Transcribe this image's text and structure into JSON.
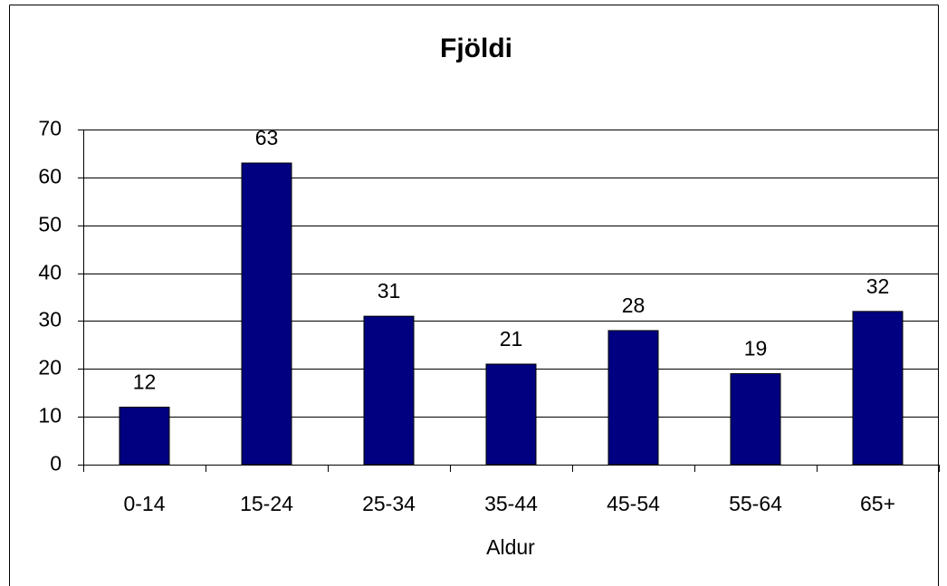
{
  "chart_data": {
    "type": "bar",
    "title": "Fjöldi",
    "x_label": "Aldur",
    "categories": [
      "0-14",
      "15-24",
      "25-34",
      "35-44",
      "45-54",
      "55-64",
      "65+"
    ],
    "values": [
      12,
      63,
      31,
      21,
      28,
      19,
      32
    ],
    "color": "#000080",
    "ylim": [
      0,
      70
    ],
    "yticks": [
      0,
      10,
      20,
      30,
      40,
      50,
      60,
      70
    ],
    "grid": true,
    "data_labels": true
  }
}
